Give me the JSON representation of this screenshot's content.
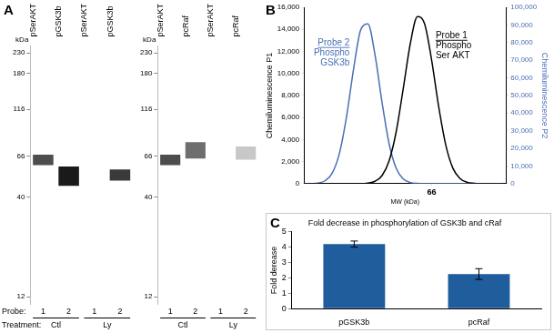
{
  "chart_data": [
    {
      "panel": "A",
      "type": "bar",
      "categories": [
        "pSerAKT",
        "pGSK3b",
        "pSerAKT",
        "pGSK3b"
      ],
      "values": [
        [
          59,
          67
        ],
        [
          46,
          58
        ],
        null,
        [
          49,
          56
        ]
      ],
      "colors": [
        "#4d4d4d",
        "#1a1a1a",
        "#4d4d4d",
        "#3a3a3a"
      ],
      "y_label": "kDa",
      "log": "y",
      "ylim": [
        11,
        250
      ],
      "yticks": [
        12,
        40,
        66,
        116,
        180,
        230
      ],
      "grid": false,
      "probe_label": "Probe:",
      "probes": [
        1,
        2,
        1,
        2
      ],
      "treatment_label": "Treatment:",
      "treatments": [
        "Ctl",
        "Ly"
      ]
    },
    {
      "type": "bar",
      "categories": [
        "pSerAKT",
        "pcRaf",
        "pSerAKT",
        "pcRaf"
      ],
      "values": [
        [
          59,
          67
        ],
        [
          64,
          78
        ],
        null,
        [
          63,
          74
        ]
      ],
      "colors": [
        "#4d4d4d",
        "#6e6e6e",
        "#4d4d4d",
        "#c8c8c8"
      ],
      "y_label": "kDa",
      "log": "y",
      "ylim": [
        11,
        250
      ],
      "yticks": [
        12,
        40,
        66,
        116,
        180,
        230
      ],
      "grid": false,
      "probes": [
        1,
        2,
        1,
        2
      ],
      "treatments": [
        "Ctl",
        "Ly"
      ]
    },
    {
      "panel": "B",
      "type": "line",
      "x_label": "MW (kDa)",
      "y_label": "Chemiluminescence P1",
      "y2_label": "Chemiluminescence P2",
      "x": [
        30,
        32,
        34,
        36,
        38,
        40,
        42,
        44,
        46,
        48,
        50,
        52,
        54,
        56,
        58,
        60,
        62,
        64,
        66,
        68,
        70,
        72,
        74,
        76,
        78,
        80,
        82,
        84,
        86
      ],
      "series": [
        {
          "name": "Probe 1",
          "text": [
            "Phospho",
            "Ser AKT"
          ],
          "color": "#000000",
          "values": [
            0,
            0,
            0,
            0,
            0,
            0,
            0,
            0,
            0,
            48,
            210,
            730,
            2070,
            4710,
            8640,
            12740,
            15150,
            14510,
            11200,
            6960,
            3480,
            1400,
            460,
            120,
            25,
            0,
            0,
            0,
            0
          ]
        },
        {
          "name": "Probe 2",
          "text": [
            "Phospho",
            "GSK3b"
          ],
          "color": "#4a6fb5",
          "axis": "y2",
          "values": [
            0,
            50,
            300,
            1700,
            6170,
            17400,
            38200,
            65400,
            87300,
            90600,
            73300,
            46100,
            22600,
            8640,
            2570,
            600,
            110,
            0,
            0,
            0,
            0,
            0,
            0,
            0,
            0,
            0,
            0,
            0,
            0
          ]
        }
      ],
      "xlim": [
        30,
        87
      ],
      "xticks": [
        66
      ],
      "ylim": [
        0,
        16000
      ],
      "yticks": [
        0,
        {
          "value": 2000,
          "label": "2,000"
        },
        {
          "value": 4000,
          "label": "4,000"
        },
        {
          "value": 6000,
          "label": "6,000"
        },
        {
          "value": 8000,
          "label": "8,000"
        },
        {
          "value": 10000,
          "label": "10,000"
        },
        {
          "value": 12000,
          "label": "12,000"
        },
        {
          "value": 14000,
          "label": "14,000"
        },
        {
          "value": 16000,
          "label": "16,000"
        }
      ],
      "y2lim": [
        0,
        100000
      ],
      "y2ticks": [
        0,
        {
          "value": 10000,
          "label": "10,000"
        },
        {
          "value": 20000,
          "label": "20,000"
        },
        {
          "value": 30000,
          "label": "30,000"
        },
        {
          "value": 40000,
          "label": "40,000"
        },
        {
          "value": 50000,
          "label": "50,000"
        },
        {
          "value": 60000,
          "label": "60,000"
        },
        {
          "value": 70000,
          "label": "70,000"
        },
        {
          "value": 80000,
          "label": "80,000"
        },
        {
          "value": 90000,
          "label": "90,000"
        },
        {
          "value": 100000,
          "label": "100,000"
        }
      ],
      "grid": false
    },
    {
      "panel": "C",
      "type": "bar",
      "title": "Fold decrease in phosphorylation of GSK3b and cRaf",
      "y_label": "Fold derease",
      "categories": [
        "pGSK3b",
        "pcRaf"
      ],
      "values": [
        4.2,
        2.25
      ],
      "errors": [
        0.2,
        0.35
      ],
      "color": "#1f5d9c",
      "ylim": [
        0,
        5
      ],
      "yticks": [
        0,
        1,
        2,
        3,
        4,
        5
      ],
      "grid": false
    }
  ]
}
